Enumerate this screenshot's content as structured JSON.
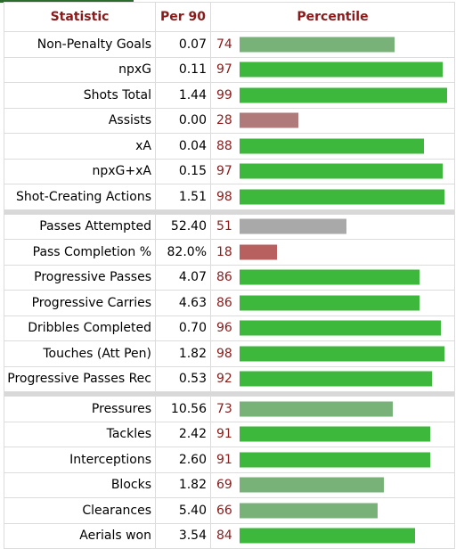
{
  "header": {
    "statistic": "Statistic",
    "per90": "Per 90",
    "percentile": "Percentile"
  },
  "groups": [
    [
      {
        "stat": "Non-Penalty Goals",
        "per90": "0.07",
        "pct": 74
      },
      {
        "stat": "npxG",
        "per90": "0.11",
        "pct": 97
      },
      {
        "stat": "Shots Total",
        "per90": "1.44",
        "pct": 99
      },
      {
        "stat": "Assists",
        "per90": "0.00",
        "pct": 28
      },
      {
        "stat": "xA",
        "per90": "0.04",
        "pct": 88
      },
      {
        "stat": "npxG+xA",
        "per90": "0.15",
        "pct": 97
      },
      {
        "stat": "Shot-Creating Actions",
        "per90": "1.51",
        "pct": 98
      }
    ],
    [
      {
        "stat": "Passes Attempted",
        "per90": "52.40",
        "pct": 51
      },
      {
        "stat": "Pass Completion %",
        "per90": "82.0%",
        "pct": 18
      },
      {
        "stat": "Progressive Passes",
        "per90": "4.07",
        "pct": 86
      },
      {
        "stat": "Progressive Carries",
        "per90": "4.63",
        "pct": 86
      },
      {
        "stat": "Dribbles Completed",
        "per90": "0.70",
        "pct": 96
      },
      {
        "stat": "Touches (Att Pen)",
        "per90": "1.82",
        "pct": 98
      },
      {
        "stat": "Progressive Passes Rec",
        "per90": "0.53",
        "pct": 92
      }
    ],
    [
      {
        "stat": "Pressures",
        "per90": "10.56",
        "pct": 73
      },
      {
        "stat": "Tackles",
        "per90": "2.42",
        "pct": 91
      },
      {
        "stat": "Interceptions",
        "per90": "2.60",
        "pct": 91
      },
      {
        "stat": "Blocks",
        "per90": "1.82",
        "pct": 69
      },
      {
        "stat": "Clearances",
        "per90": "5.40",
        "pct": 66
      },
      {
        "stat": "Aerials won",
        "per90": "3.54",
        "pct": 84
      }
    ]
  ],
  "colors": {
    "header_text": "#8b1a1a",
    "pct_text": "#8b1a1a",
    "bar_high": "#3db83d",
    "bar_mid": "#79b279",
    "bar_neutral": "#a9a9a9",
    "bar_low_muted": "#b07a7a",
    "bar_low": "#b86060"
  }
}
